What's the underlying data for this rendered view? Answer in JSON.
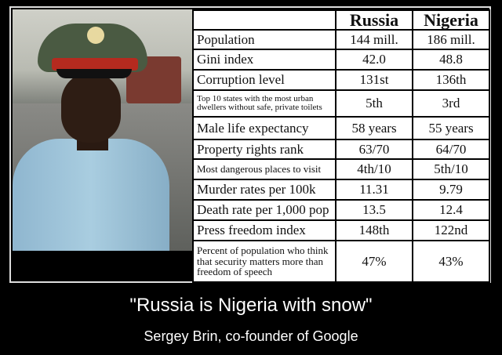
{
  "table": {
    "headers": [
      "",
      "Russia",
      "Nigeria"
    ],
    "rows": [
      {
        "label": "Population",
        "russia": "144 mill.",
        "nigeria": "186 mill."
      },
      {
        "label": "Gini index",
        "russia": "42.0",
        "nigeria": "48.8"
      },
      {
        "label": "Corruption level",
        "russia": "131st",
        "nigeria": "136th"
      },
      {
        "label": "Top 10 states with the most urban dwellers without safe, private toilets",
        "russia": "5th",
        "nigeria": "3rd"
      },
      {
        "label": "Male life expectancy",
        "russia": "58 years",
        "nigeria": "55 years"
      },
      {
        "label": "Property rights rank",
        "russia": "63/70",
        "nigeria": "64/70"
      },
      {
        "label": "Most dangerous places to visit",
        "russia": "4th/10",
        "nigeria": "5th/10"
      },
      {
        "label": "Murder rates per 100k",
        "russia": "11.31",
        "nigeria": "9.79"
      },
      {
        "label": "Death rate per 1,000 pop",
        "russia": "13.5",
        "nigeria": "12.4"
      },
      {
        "label": "Press freedom index",
        "russia": "148th",
        "nigeria": "122nd"
      },
      {
        "label": "Percent of population who think that security matters more than freedom of speech",
        "russia": "47%",
        "nigeria": "43%"
      }
    ]
  },
  "caption": {
    "quote": "\"Russia is Nigeria with snow\"",
    "author": "Sergey Brin, co-founder of Google"
  }
}
